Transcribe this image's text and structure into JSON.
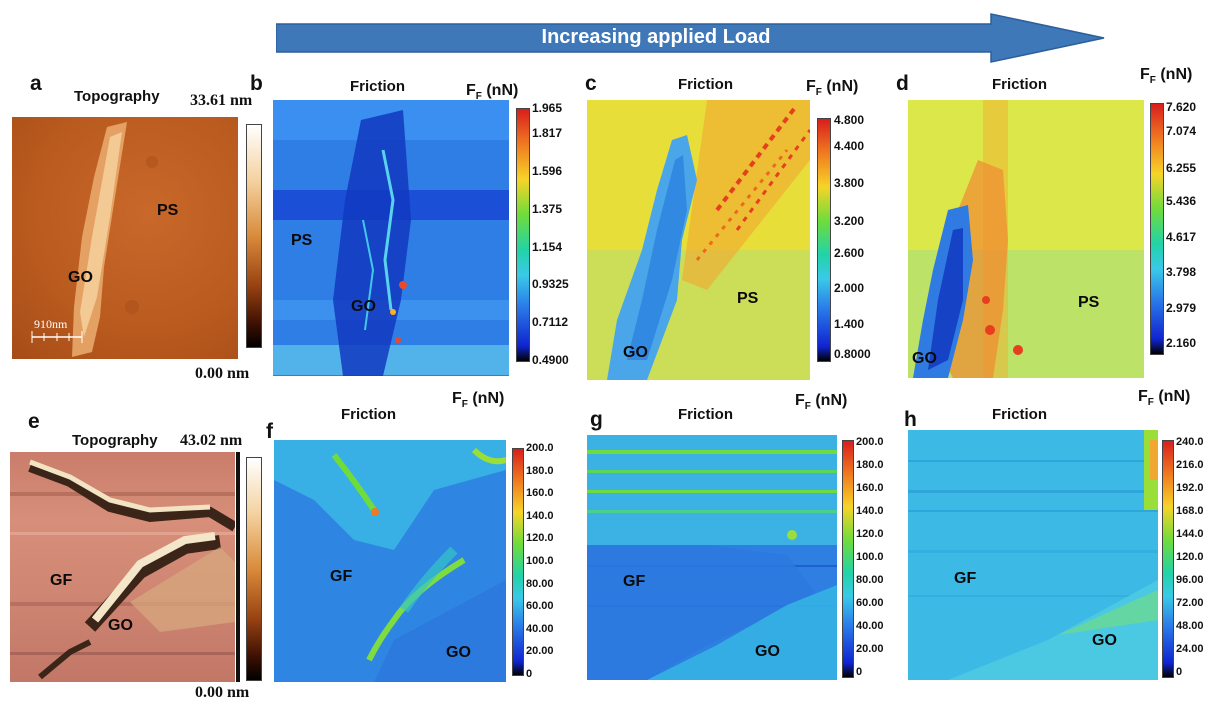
{
  "arrow": {
    "label": "Increasing applied Load",
    "color": "#3f78b8"
  },
  "panels": {
    "a": {
      "letter": "a",
      "title": "Topography",
      "scale_max": "33.61 nm",
      "scale_min": "0.00 nm",
      "labels": {
        "ps": "PS",
        "go": "GO"
      },
      "scalebar": "910nm"
    },
    "b": {
      "letter": "b",
      "title": "Friction",
      "unit": "F",
      "unit_sub": "F",
      "unit_tail": " (nN)",
      "ticks": [
        "1.965",
        "1.817",
        "1.596",
        "1.375",
        "1.154",
        "0.9325",
        "0.7112",
        "0.4900"
      ],
      "labels": {
        "ps": "PS",
        "go": "GO"
      }
    },
    "c": {
      "letter": "c",
      "title": "Friction",
      "unit": "F",
      "unit_sub": "F",
      "unit_tail": " (nN)",
      "ticks": [
        "4.800",
        "4.400",
        "3.800",
        "3.200",
        "2.600",
        "2.000",
        "1.400",
        "0.8000"
      ],
      "labels": {
        "ps": "PS",
        "go": "GO"
      }
    },
    "d": {
      "letter": "d",
      "title": "Friction",
      "unit": "F",
      "unit_sub": "F",
      "unit_tail": " (nN)",
      "ticks": [
        "7.620",
        "7.074",
        "6.255",
        "5.436",
        "4.617",
        "3.798",
        "2.979",
        "2.160"
      ],
      "labels": {
        "ps": "PS",
        "go": "GO"
      }
    },
    "e": {
      "letter": "e",
      "title": "Topography",
      "scale_max": "43.02 nm",
      "scale_min": "0.00 nm",
      "labels": {
        "gf": "GF",
        "go": "GO"
      }
    },
    "f": {
      "letter": "f",
      "title": "Friction",
      "unit": "F",
      "unit_sub": "F",
      "unit_tail": " (nN)",
      "ticks": [
        "200.0",
        "180.0",
        "160.0",
        "140.0",
        "120.0",
        "100.0",
        "80.00",
        "60.00",
        "40.00",
        "20.00",
        "0"
      ],
      "labels": {
        "gf": "GF",
        "go": "GO"
      }
    },
    "g": {
      "letter": "g",
      "title": "Friction",
      "unit": "F",
      "unit_sub": "F",
      "unit_tail": " (nN)",
      "ticks": [
        "200.0",
        "180.0",
        "160.0",
        "140.0",
        "120.0",
        "100.0",
        "80.00",
        "60.00",
        "40.00",
        "20.00",
        "0"
      ],
      "labels": {
        "go": "GO"
      }
    },
    "h": {
      "letter": "h",
      "title": "Friction",
      "unit": "F",
      "unit_sub": "F",
      "unit_tail": " (nN)",
      "ticks": [
        "240.0",
        "216.0",
        "192.0",
        "168.0",
        "144.0",
        "120.0",
        "96.00",
        "72.00",
        "48.00",
        "24.00",
        "0"
      ],
      "labels": {
        "gf": "GF",
        "go": "GO"
      }
    }
  },
  "colors": {
    "jet_top": "#d81e1e",
    "jet_bottom": "#000000",
    "copper_top": "#ffffff",
    "copper_bottom": "#000000"
  }
}
